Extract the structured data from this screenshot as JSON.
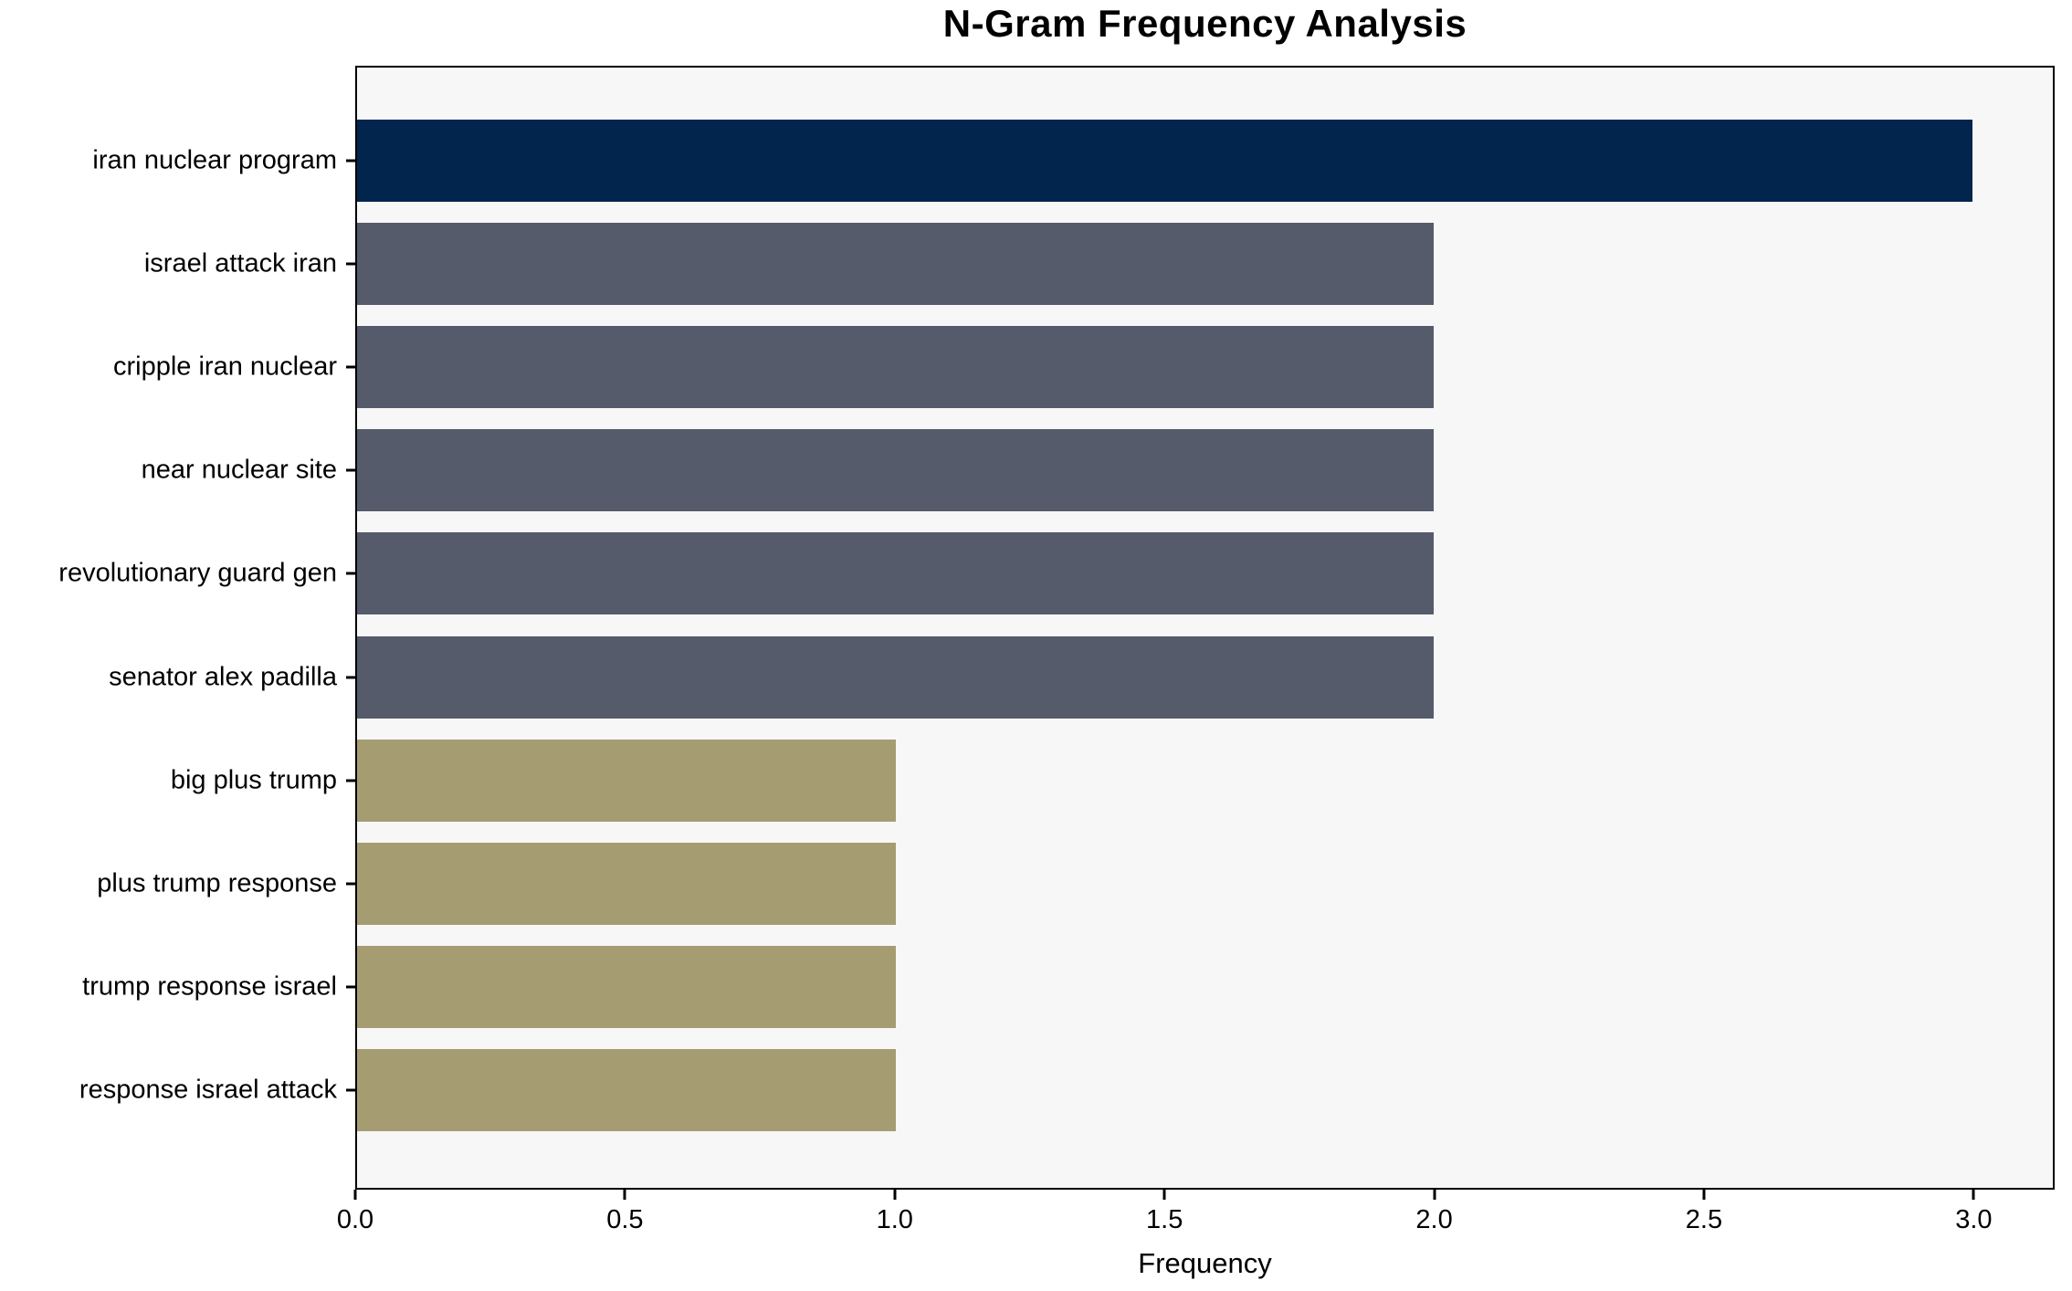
{
  "chart_data": {
    "type": "bar",
    "orientation": "horizontal",
    "title": "N-Gram Frequency Analysis",
    "xlabel": "Frequency",
    "ylabel": "",
    "categories": [
      "iran nuclear program",
      "israel attack iran",
      "cripple iran nuclear",
      "near nuclear site",
      "revolutionary guard gen",
      "senator alex padilla",
      "big plus trump",
      "plus trump response",
      "trump response israel",
      "response israel attack"
    ],
    "values": [
      3,
      2,
      2,
      2,
      2,
      2,
      1,
      1,
      1,
      1
    ],
    "bar_colors": [
      "#02254E",
      "#565B6B",
      "#565B6B",
      "#565B6B",
      "#565B6B",
      "#565B6B",
      "#A69C72",
      "#A69C72",
      "#A69C72",
      "#A69C72"
    ],
    "xlim": [
      0,
      3.15
    ],
    "x_ticks": [
      0.0,
      0.5,
      1.0,
      1.5,
      2.0,
      2.5,
      3.0
    ],
    "x_tick_labels": [
      "0.0",
      "0.5",
      "1.0",
      "1.5",
      "2.0",
      "2.5",
      "3.0"
    ],
    "grid": false,
    "legend": null,
    "plot_background": "#F7F7F8",
    "figure_background": "#FFFFFF",
    "spine_color": "#000000"
  }
}
